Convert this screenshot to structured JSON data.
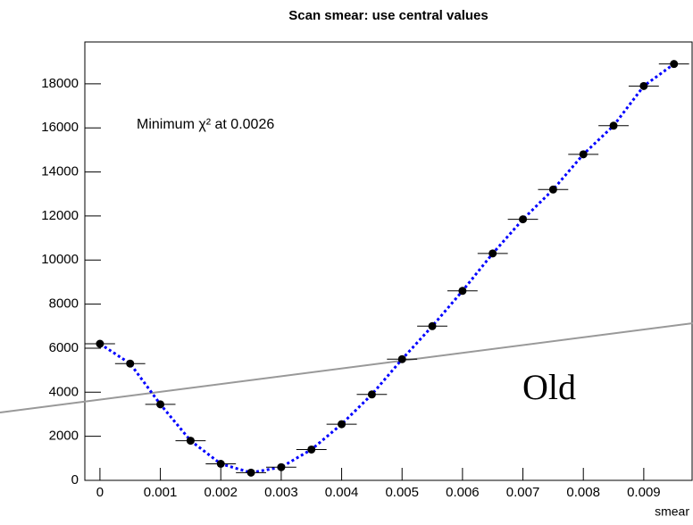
{
  "chart_data": {
    "type": "scatter",
    "title": "Scan smear: use central values",
    "x_label": "smear",
    "annotation": "Minimum χ² at 0.0026",
    "overlay_label": "Old",
    "x": [
      0,
      0.0005,
      0.001,
      0.0015,
      0.002,
      0.0025,
      0.003,
      0.0035,
      0.004,
      0.0045,
      0.005,
      0.0055,
      0.006,
      0.0065,
      0.007,
      0.0075,
      0.008,
      0.0085,
      0.009,
      0.0095
    ],
    "values": [
      6200,
      5300,
      3450,
      1800,
      750,
      350,
      600,
      1400,
      2550,
      3900,
      5500,
      7000,
      8600,
      10300,
      11850,
      13200,
      14800,
      16100,
      17900,
      18900
    ],
    "xerr": 0.00025,
    "color": "#000000",
    "curve_color": "#0000ff",
    "xlim": [
      -0.00025,
      0.0098
    ],
    "ylim": [
      0,
      19900
    ],
    "xticks": [
      0,
      0.001,
      0.002,
      0.003,
      0.004,
      0.005,
      0.006,
      0.007,
      0.008,
      0.009
    ],
    "yticks": [
      0,
      2000,
      4000,
      6000,
      8000,
      10000,
      12000,
      14000,
      16000,
      18000
    ]
  }
}
